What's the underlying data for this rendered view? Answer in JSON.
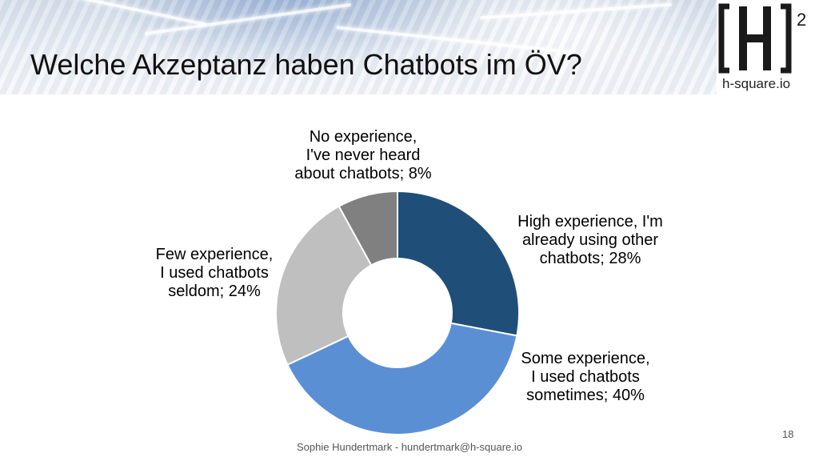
{
  "slide": {
    "title": "Welche Akzeptanz haben Chatbots im ÖV?",
    "footer": "Sophie Hundertmark - hundertmark@h-square.io",
    "page_number": "18"
  },
  "logo": {
    "text": "h-square.io",
    "superscript": "2"
  },
  "chart_data": {
    "type": "pie",
    "variant": "donut",
    "title": "",
    "slices": [
      {
        "label": "High experience, I'm already using other chatbots",
        "value": 28,
        "value_label": "28%",
        "color": "#1f4e79"
      },
      {
        "label": "Some experience, I used chatbots sometimes",
        "value": 40,
        "value_label": "40%",
        "color": "#5b8fd4"
      },
      {
        "label": "Few experience, I used chatbots seldom",
        "value": 24,
        "value_label": "24%",
        "color": "#bfbfbf"
      },
      {
        "label": "No experience, I've never heard about chatbots",
        "value": 8,
        "value_label": "8%",
        "color": "#808080"
      }
    ],
    "data_labels": [
      {
        "lines": [
          "High experience, I'm",
          "already using other",
          "chatbots; 28%"
        ]
      },
      {
        "lines": [
          "Some experience,",
          "I used chatbots",
          "sometimes; 40%"
        ]
      },
      {
        "lines": [
          "Few experience,",
          "I used chatbots",
          "seldom; 24%"
        ]
      },
      {
        "lines": [
          "No experience,",
          "I've never heard",
          "about chatbots; 8%"
        ]
      }
    ],
    "legend": "none"
  }
}
